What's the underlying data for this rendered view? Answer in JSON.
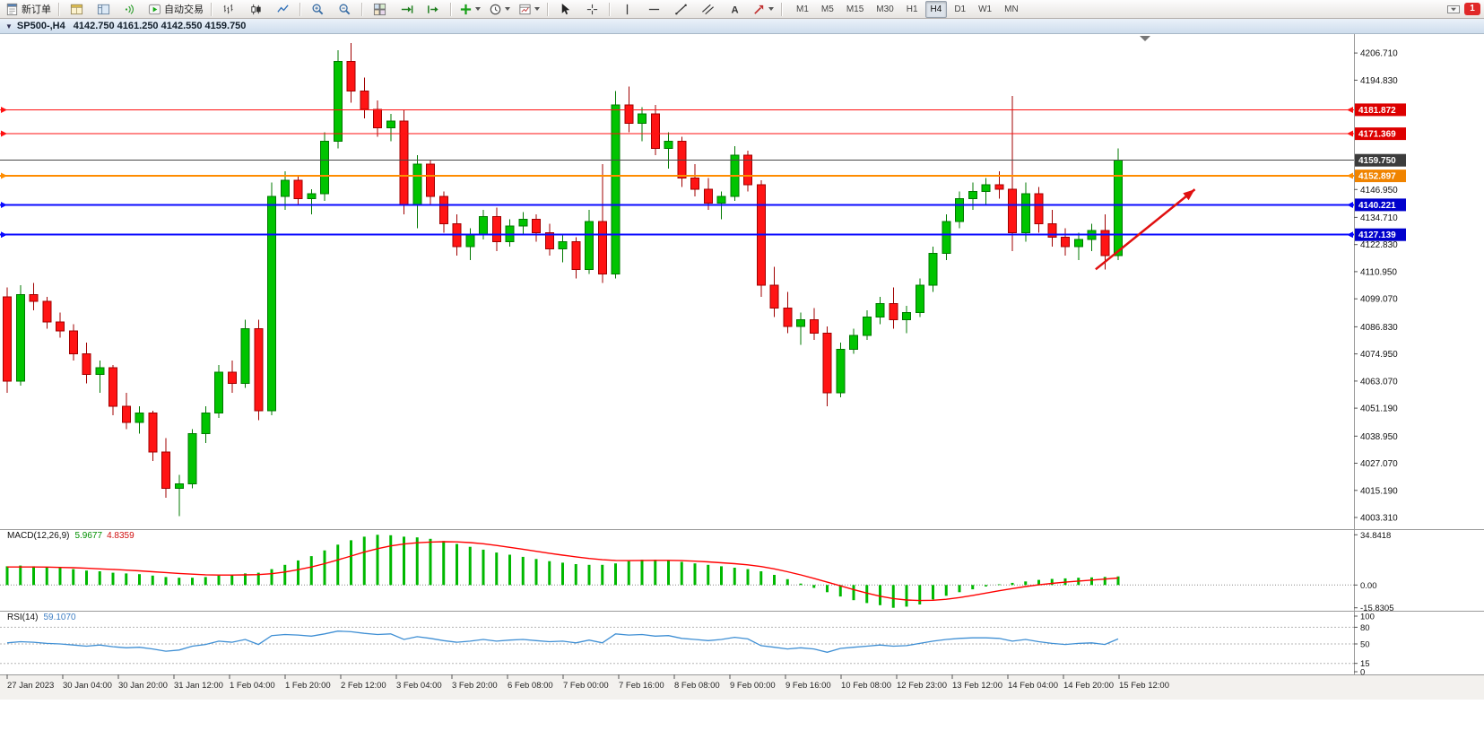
{
  "toolbar": {
    "new_order_label": "新订单",
    "autotrading_label": "自动交易",
    "timeframes": [
      "M1",
      "M5",
      "M15",
      "M30",
      "H1",
      "H4",
      "D1",
      "W1",
      "MN"
    ],
    "active_timeframe": "H4",
    "notification_count": "1",
    "icons": [
      "new-order-icon",
      "market-watch-icon",
      "navigator-icon",
      "sound-icon",
      "autotrading-icon",
      "bars-chart-icon",
      "candles-chart-icon",
      "line-chart-icon",
      "zoom-in-icon",
      "zoom-out-icon",
      "tile-windows-icon",
      "auto-scroll-icon",
      "chart-shift-icon",
      "indicators-icon",
      "periods-icon",
      "templates-icon",
      "cursor-icon",
      "crosshair-icon",
      "vertical-line-icon",
      "horizontal-line-icon",
      "trendline-icon",
      "channel-icon",
      "text-tool-icon",
      "arrows-tool-icon",
      "tray-icon",
      "notification-icon"
    ]
  },
  "chart_header": {
    "title": "SP500-,H4",
    "ohlc": "4142.750 4161.250 4142.550 4159.750"
  },
  "indicators": {
    "macd_label": "MACD(12,26,9)",
    "macd_value": "5.9677",
    "macd_signal_value": "4.8359",
    "rsi_label": "RSI(14)",
    "rsi_value": "59.1070"
  },
  "hlines": [
    {
      "price": 4181.872,
      "color": "#ff1010",
      "width": 1,
      "markers": true,
      "badge_color": "#dd0000"
    },
    {
      "price": 4171.369,
      "color": "#ff1010",
      "width": 1,
      "markers": true,
      "badge_color": "#dd0000"
    },
    {
      "price": 4159.75,
      "color": "#484848",
      "width": 1,
      "markers": false,
      "badge_color": "#3c3c3c"
    },
    {
      "price": 4152.897,
      "color": "#ff8c00",
      "width": 2,
      "markers": true,
      "badge_color": "#f08400"
    },
    {
      "price": 4140.221,
      "color": "#0a0aff",
      "width": 2,
      "markers": true,
      "badge_color": "#0000cc"
    },
    {
      "price": 4127.139,
      "color": "#0a0aff",
      "width": 2,
      "markers": true,
      "badge_color": "#0000cc"
    }
  ],
  "annotation": {
    "type": "trend-arrow",
    "from_bar": 82.3,
    "from_price": 4112,
    "to_bar": 89.8,
    "to_price": 4147,
    "color": "#e01010"
  },
  "time_axis": {
    "labels": [
      "27 Jan 2023",
      "30 Jan 04:00",
      "30 Jan 20:00",
      "31 Jan 12:00",
      "1 Feb 04:00",
      "1 Feb 20:00",
      "2 Feb 12:00",
      "3 Feb 04:00",
      "3 Feb 20:00",
      "6 Feb 08:00",
      "7 Feb 00:00",
      "7 Feb 16:00",
      "8 Feb 08:00",
      "9 Feb 00:00",
      "9 Feb 16:00",
      "10 Feb 08:00",
      "12 Feb 23:00",
      "13 Feb 12:00",
      "14 Feb 04:00",
      "14 Feb 20:00",
      "15 Feb 12:00"
    ]
  },
  "chart_data": [
    {
      "id": "price",
      "type": "candlestick",
      "symbol": "SP500-",
      "timeframe": "H4",
      "current_price": 4159.75,
      "ylim": [
        3999,
        4215
      ],
      "y_ticks": [
        4206.71,
        4194.83,
        4146.95,
        4134.71,
        4122.83,
        4110.95,
        4099.07,
        4086.83,
        4074.95,
        4063.07,
        4051.19,
        4038.95,
        4027.07,
        4015.19,
        4003.31
      ],
      "colors": {
        "up": "#00c400",
        "down": "#ff1414",
        "up_border": "#007800",
        "down_border": "#a00000"
      },
      "bars": [
        [
          4100,
          4104,
          4058,
          4063
        ],
        [
          4063,
          4105,
          4061,
          4101
        ],
        [
          4101,
          4106,
          4094,
          4098
        ],
        [
          4098,
          4100,
          4086,
          4089
        ],
        [
          4089,
          4093,
          4082,
          4085
        ],
        [
          4085,
          4088,
          4072,
          4075
        ],
        [
          4075,
          4080,
          4062,
          4066
        ],
        [
          4066,
          4072,
          4058,
          4069
        ],
        [
          4069,
          4070,
          4048,
          4052
        ],
        [
          4052,
          4058,
          4042,
          4045
        ],
        [
          4045,
          4052,
          4040,
          4049
        ],
        [
          4049,
          4050,
          4028,
          4032
        ],
        [
          4032,
          4038,
          4012,
          4016
        ],
        [
          4016,
          4022,
          4004,
          4018
        ],
        [
          4018,
          4042,
          4016,
          4040
        ],
        [
          4040,
          4052,
          4036,
          4049
        ],
        [
          4049,
          4070,
          4047,
          4067
        ],
        [
          4067,
          4072,
          4058,
          4062
        ],
        [
          4062,
          4090,
          4060,
          4086
        ],
        [
          4086,
          4090,
          4046,
          4050
        ],
        [
          4050,
          4150,
          4048,
          4144
        ],
        [
          4144,
          4155,
          4138,
          4151
        ],
        [
          4151,
          4153,
          4140,
          4143
        ],
        [
          4143,
          4147,
          4136,
          4145
        ],
        [
          4145,
          4172,
          4142,
          4168
        ],
        [
          4168,
          4208,
          4165,
          4203
        ],
        [
          4203,
          4211,
          4185,
          4190
        ],
        [
          4190,
          4196,
          4178,
          4182
        ],
        [
          4182,
          4186,
          4170,
          4174
        ],
        [
          4174,
          4180,
          4168,
          4177
        ],
        [
          4177,
          4182,
          4136,
          4140
        ],
        [
          4140,
          4162,
          4130,
          4158
        ],
        [
          4158,
          4160,
          4140,
          4144
        ],
        [
          4144,
          4146,
          4128,
          4132
        ],
        [
          4132,
          4136,
          4118,
          4122
        ],
        [
          4122,
          4130,
          4116,
          4127
        ],
        [
          4127,
          4138,
          4125,
          4135
        ],
        [
          4135,
          4139,
          4120,
          4124
        ],
        [
          4124,
          4134,
          4122,
          4131
        ],
        [
          4131,
          4137,
          4127,
          4134
        ],
        [
          4134,
          4136,
          4124,
          4128
        ],
        [
          4128,
          4132,
          4118,
          4121
        ],
        [
          4121,
          4127,
          4115,
          4124
        ],
        [
          4124,
          4126,
          4108,
          4112
        ],
        [
          4112,
          4138,
          4110,
          4133
        ],
        [
          4133,
          4158,
          4106,
          4110
        ],
        [
          4110,
          4190,
          4108,
          4184
        ],
        [
          4184,
          4192,
          4172,
          4176
        ],
        [
          4176,
          4183,
          4168,
          4180
        ],
        [
          4180,
          4184,
          4162,
          4165
        ],
        [
          4165,
          4172,
          4156,
          4168
        ],
        [
          4168,
          4170,
          4148,
          4152
        ],
        [
          4152,
          4158,
          4144,
          4147
        ],
        [
          4147,
          4152,
          4138,
          4141
        ],
        [
          4141,
          4146,
          4134,
          4144
        ],
        [
          4144,
          4166,
          4142,
          4162
        ],
        [
          4162,
          4164,
          4146,
          4149
        ],
        [
          4149,
          4151,
          4100,
          4105
        ],
        [
          4105,
          4113,
          4091,
          4095
        ],
        [
          4095,
          4102,
          4084,
          4087
        ],
        [
          4087,
          4093,
          4079,
          4090
        ],
        [
          4090,
          4095,
          4081,
          4084
        ],
        [
          4084,
          4087,
          4052,
          4058
        ],
        [
          4058,
          4080,
          4056,
          4077
        ],
        [
          4077,
          4086,
          4075,
          4083
        ],
        [
          4083,
          4094,
          4081,
          4091
        ],
        [
          4091,
          4100,
          4088,
          4097
        ],
        [
          4097,
          4104,
          4086,
          4090
        ],
        [
          4090,
          4096,
          4084,
          4093
        ],
        [
          4093,
          4108,
          4091,
          4105
        ],
        [
          4105,
          4122,
          4102,
          4119
        ],
        [
          4119,
          4136,
          4116,
          4133
        ],
        [
          4133,
          4146,
          4130,
          4143
        ],
        [
          4143,
          4150,
          4138,
          4146
        ],
        [
          4146,
          4152,
          4140,
          4149
        ],
        [
          4149,
          4155,
          4143,
          4147
        ],
        [
          4147,
          4188,
          4120,
          4128
        ],
        [
          4128,
          4150,
          4124,
          4145
        ],
        [
          4145,
          4148,
          4128,
          4132
        ],
        [
          4132,
          4138,
          4122,
          4126
        ],
        [
          4126,
          4130,
          4118,
          4122
        ],
        [
          4122,
          4128,
          4116,
          4125
        ],
        [
          4125,
          4132,
          4120,
          4129
        ],
        [
          4129,
          4136,
          4112,
          4118
        ],
        [
          4118,
          4165,
          4116,
          4159.75
        ]
      ]
    },
    {
      "id": "macd",
      "type": "bar+line",
      "name": "MACD(12,26,9)",
      "ylim": [
        -16,
        35
      ],
      "ticks": [
        {
          "v": 34.8418,
          "label": "34.8418"
        },
        {
          "v": 0,
          "label": "0.00"
        },
        {
          "v": -15.8305,
          "label": "-15.8305"
        }
      ],
      "colors": {
        "histogram": "#00b800",
        "signal": "#ff0000"
      },
      "histogram": [
        13,
        13.5,
        13,
        12.5,
        12,
        11,
        10,
        9.5,
        8.5,
        8,
        7.5,
        6.5,
        5.5,
        5,
        5,
        5.5,
        6.5,
        7,
        8,
        8.5,
        11,
        14,
        17,
        20,
        24,
        28,
        31,
        33.5,
        34.8,
        34.5,
        33.5,
        33,
        32,
        30.5,
        28.5,
        26.5,
        24.5,
        22.5,
        21,
        19.5,
        18,
        16.5,
        15.5,
        14.5,
        14,
        14,
        15,
        16.5,
        17.5,
        17.5,
        17,
        16,
        15,
        14,
        13,
        12,
        11,
        9.5,
        7,
        4,
        1,
        -2,
        -5,
        -8,
        -10.5,
        -12.5,
        -14,
        -15.8,
        -15,
        -13.5,
        -10,
        -7.5,
        -5,
        -3,
        -1,
        0.5,
        1.5,
        2.5,
        3.5,
        4.2,
        4.6,
        5,
        5.3,
        5.6,
        5.97
      ],
      "signal": [
        12.5,
        12.5,
        12.5,
        12.4,
        12.2,
        12,
        11.6,
        11.2,
        10.8,
        10.3,
        9.8,
        9.2,
        8.6,
        8,
        7.5,
        7.1,
        6.9,
        6.9,
        7,
        7.2,
        7.8,
        9,
        10.6,
        12.5,
        14.8,
        17.4,
        20.1,
        22.8,
        25.2,
        27.1,
        28.4,
        29.3,
        29.8,
        30,
        29.9,
        29.4,
        28.6,
        27.4,
        26.1,
        24.8,
        23.4,
        22,
        20.7,
        19.5,
        18.4,
        17.5,
        17,
        16.9,
        17,
        17.1,
        17.1,
        16.9,
        16.5,
        16,
        15.4,
        14.8,
        14,
        12.8,
        11.2,
        9.2,
        7,
        4.6,
        2,
        -0.6,
        -3.2,
        -5.6,
        -7.8,
        -9.4,
        -10.4,
        -10.8,
        -10.6,
        -9.9,
        -8.7,
        -7.2,
        -5.6,
        -4,
        -2.5,
        -1.1,
        0.1,
        1.1,
        2,
        2.7,
        3.4,
        4.1,
        4.84
      ]
    },
    {
      "id": "rsi",
      "type": "line",
      "name": "RSI(14)",
      "ylim": [
        0,
        100
      ],
      "levels": [
        80,
        50,
        15
      ],
      "ticks": [
        100,
        80,
        50,
        15,
        0
      ],
      "colors": {
        "line": "#3f8fd4"
      },
      "values": [
        52,
        54,
        53,
        51,
        50,
        48,
        46,
        48,
        45,
        43,
        44,
        41,
        37,
        39,
        46,
        49,
        55,
        53,
        58,
        49,
        65,
        67,
        66,
        64,
        68,
        73,
        72,
        69,
        67,
        68,
        58,
        63,
        60,
        56,
        53,
        55,
        58,
        55,
        57,
        58,
        56,
        54,
        55,
        52,
        57,
        52,
        68,
        66,
        67,
        64,
        65,
        60,
        58,
        56,
        58,
        62,
        59,
        47,
        44,
        41,
        43,
        41,
        35,
        42,
        44,
        46,
        48,
        46,
        47,
        51,
        55,
        58,
        60,
        61,
        61,
        60,
        55,
        58,
        54,
        51,
        49,
        51,
        52,
        49,
        59.1
      ]
    }
  ]
}
